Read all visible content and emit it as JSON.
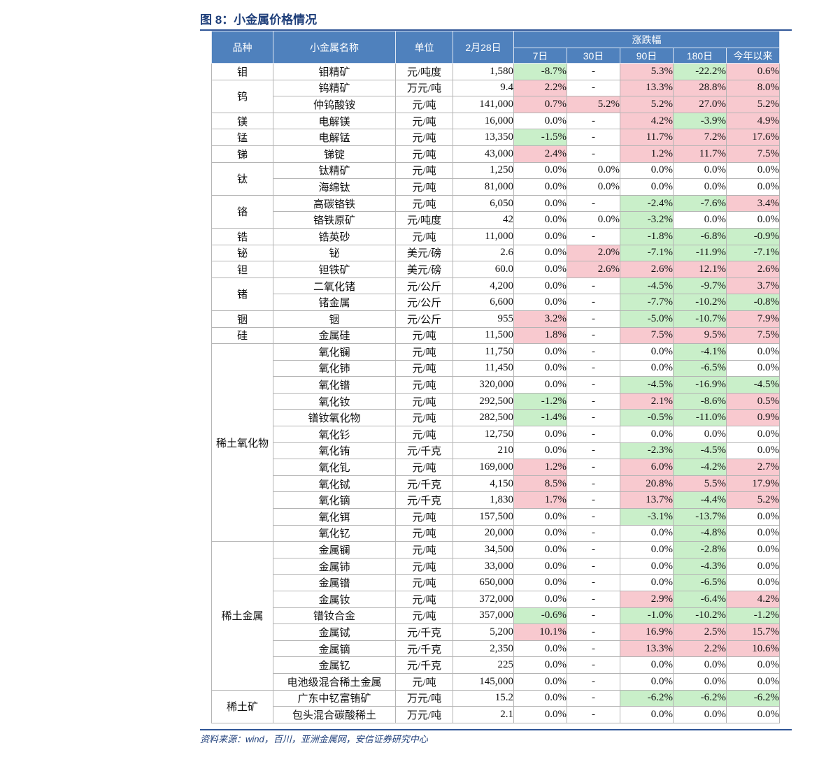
{
  "figure": {
    "title": "图 8：小金属价格情况"
  },
  "headers": {
    "category": "品种",
    "name": "小金属名称",
    "unit": "单位",
    "price": "2月28日",
    "change_group": "涨跌幅",
    "periods": [
      "7日",
      "30日",
      "90日",
      "180日",
      "今年以来"
    ]
  },
  "groups": [
    {
      "category": "钼",
      "rows": [
        {
          "name": "钼精矿",
          "unit": "元/吨度",
          "price": "1,580",
          "changes": [
            "-8.7%",
            "-",
            "5.3%",
            "-22.2%",
            "0.6%"
          ]
        }
      ]
    },
    {
      "category": "钨",
      "rows": [
        {
          "name": "钨精矿",
          "unit": "万元/吨",
          "price": "9.4",
          "changes": [
            "2.2%",
            "-",
            "13.3%",
            "28.8%",
            "8.0%"
          ]
        },
        {
          "name": "仲钨酸铵",
          "unit": "元/吨",
          "price": "141,000",
          "changes": [
            "0.7%",
            "5.2%",
            "5.2%",
            "27.0%",
            "5.2%"
          ]
        }
      ]
    },
    {
      "category": "镁",
      "rows": [
        {
          "name": "电解镁",
          "unit": "元/吨",
          "price": "16,000",
          "changes": [
            "0.0%",
            "-",
            "4.2%",
            "-3.9%",
            "4.9%"
          ]
        }
      ]
    },
    {
      "category": "锰",
      "rows": [
        {
          "name": "电解锰",
          "unit": "元/吨",
          "price": "13,350",
          "changes": [
            "-1.5%",
            "-",
            "11.7%",
            "7.2%",
            "17.6%"
          ]
        }
      ]
    },
    {
      "category": "锑",
      "rows": [
        {
          "name": "锑锭",
          "unit": "元/吨",
          "price": "43,000",
          "changes": [
            "2.4%",
            "-",
            "1.2%",
            "11.7%",
            "7.5%"
          ]
        }
      ]
    },
    {
      "category": "钛",
      "rows": [
        {
          "name": "钛精矿",
          "unit": "元/吨",
          "price": "1,250",
          "changes": [
            "0.0%",
            "0.0%",
            "0.0%",
            "0.0%",
            "0.0%"
          ]
        },
        {
          "name": "海绵钛",
          "unit": "元/吨",
          "price": "81,000",
          "changes": [
            "0.0%",
            "0.0%",
            "0.0%",
            "0.0%",
            "0.0%"
          ]
        }
      ]
    },
    {
      "category": "铬",
      "rows": [
        {
          "name": "高碳铬铁",
          "unit": "元/吨",
          "price": "6,050",
          "changes": [
            "0.0%",
            "-",
            "-2.4%",
            "-7.6%",
            "3.4%"
          ]
        },
        {
          "name": "铬铁原矿",
          "unit": "元/吨度",
          "price": "42",
          "changes": [
            "0.0%",
            "0.0%",
            "-3.2%",
            "0.0%",
            "0.0%"
          ]
        }
      ]
    },
    {
      "category": "锆",
      "rows": [
        {
          "name": "锆英砂",
          "unit": "元/吨",
          "price": "11,000",
          "changes": [
            "0.0%",
            "-",
            "-1.8%",
            "-6.8%",
            "-0.9%"
          ]
        }
      ]
    },
    {
      "category": "铋",
      "rows": [
        {
          "name": "铋",
          "unit": "美元/磅",
          "price": "2.6",
          "changes": [
            "0.0%",
            "2.0%",
            "-7.1%",
            "-11.9%",
            "-7.1%"
          ]
        }
      ]
    },
    {
      "category": "钽",
      "rows": [
        {
          "name": "钽铁矿",
          "unit": "美元/磅",
          "price": "60.0",
          "changes": [
            "0.0%",
            "2.6%",
            "2.6%",
            "12.1%",
            "2.6%"
          ]
        }
      ]
    },
    {
      "category": "锗",
      "rows": [
        {
          "name": "二氧化锗",
          "unit": "元/公斤",
          "price": "4,200",
          "changes": [
            "0.0%",
            "-",
            "-4.5%",
            "-9.7%",
            "3.7%"
          ]
        },
        {
          "name": "锗金属",
          "unit": "元/公斤",
          "price": "6,600",
          "changes": [
            "0.0%",
            "-",
            "-7.7%",
            "-10.2%",
            "-0.8%"
          ]
        }
      ]
    },
    {
      "category": "铟",
      "rows": [
        {
          "name": "铟",
          "unit": "元/公斤",
          "price": "955",
          "changes": [
            "3.2%",
            "-",
            "-5.0%",
            "-10.7%",
            "7.9%"
          ]
        }
      ]
    },
    {
      "category": "硅",
      "rows": [
        {
          "name": "金属硅",
          "unit": "元/吨",
          "price": "11,500",
          "changes": [
            "1.8%",
            "-",
            "7.5%",
            "9.5%",
            "7.5%"
          ]
        }
      ]
    },
    {
      "category": "稀土氧化物",
      "rows": [
        {
          "name": "氧化镧",
          "unit": "元/吨",
          "price": "11,750",
          "changes": [
            "0.0%",
            "-",
            "0.0%",
            "-4.1%",
            "0.0%"
          ]
        },
        {
          "name": "氧化铈",
          "unit": "元/吨",
          "price": "11,450",
          "changes": [
            "0.0%",
            "-",
            "0.0%",
            "-6.5%",
            "0.0%"
          ]
        },
        {
          "name": "氧化镨",
          "unit": "元/吨",
          "price": "320,000",
          "changes": [
            "0.0%",
            "-",
            "-4.5%",
            "-16.9%",
            "-4.5%"
          ]
        },
        {
          "name": "氧化钕",
          "unit": "元/吨",
          "price": "292,500",
          "changes": [
            "-1.2%",
            "-",
            "2.1%",
            "-8.6%",
            "0.5%"
          ]
        },
        {
          "name": "镨钕氧化物",
          "unit": "元/吨",
          "price": "282,500",
          "changes": [
            "-1.4%",
            "-",
            "-0.5%",
            "-11.0%",
            "0.9%"
          ]
        },
        {
          "name": "氧化钐",
          "unit": "元/吨",
          "price": "12,750",
          "changes": [
            "0.0%",
            "-",
            "0.0%",
            "0.0%",
            "0.0%"
          ]
        },
        {
          "name": "氧化铕",
          "unit": "元/千克",
          "price": "210",
          "changes": [
            "0.0%",
            "-",
            "-2.3%",
            "-4.5%",
            "0.0%"
          ]
        },
        {
          "name": "氧化钆",
          "unit": "元/吨",
          "price": "169,000",
          "changes": [
            "1.2%",
            "-",
            "6.0%",
            "-4.2%",
            "2.7%"
          ]
        },
        {
          "name": "氧化铽",
          "unit": "元/千克",
          "price": "4,150",
          "changes": [
            "8.5%",
            "-",
            "20.8%",
            "5.5%",
            "17.9%"
          ]
        },
        {
          "name": "氧化镝",
          "unit": "元/千克",
          "price": "1,830",
          "changes": [
            "1.7%",
            "-",
            "13.7%",
            "-4.4%",
            "5.2%"
          ]
        },
        {
          "name": "氧化铒",
          "unit": "元/吨",
          "price": "157,500",
          "changes": [
            "0.0%",
            "-",
            "-3.1%",
            "-13.7%",
            "0.0%"
          ]
        },
        {
          "name": "氧化钇",
          "unit": "元/吨",
          "price": "20,000",
          "changes": [
            "0.0%",
            "-",
            "0.0%",
            "-4.8%",
            "0.0%"
          ]
        }
      ]
    },
    {
      "category": "稀土金属",
      "rows": [
        {
          "name": "金属镧",
          "unit": "元/吨",
          "price": "34,500",
          "changes": [
            "0.0%",
            "-",
            "0.0%",
            "-2.8%",
            "0.0%"
          ]
        },
        {
          "name": "金属铈",
          "unit": "元/吨",
          "price": "33,000",
          "changes": [
            "0.0%",
            "-",
            "0.0%",
            "-4.3%",
            "0.0%"
          ]
        },
        {
          "name": "金属镨",
          "unit": "元/吨",
          "price": "650,000",
          "changes": [
            "0.0%",
            "-",
            "0.0%",
            "-6.5%",
            "0.0%"
          ]
        },
        {
          "name": "金属钕",
          "unit": "元/吨",
          "price": "372,000",
          "changes": [
            "0.0%",
            "-",
            "2.9%",
            "-6.4%",
            "4.2%"
          ]
        },
        {
          "name": "镨钕合金",
          "unit": "元/吨",
          "price": "357,000",
          "changes": [
            "-0.6%",
            "-",
            "-1.0%",
            "-10.2%",
            "-1.2%"
          ]
        },
        {
          "name": "金属铽",
          "unit": "元/千克",
          "price": "5,200",
          "changes": [
            "10.1%",
            "-",
            "16.9%",
            "2.5%",
            "15.7%"
          ]
        },
        {
          "name": "金属镝",
          "unit": "元/千克",
          "price": "2,350",
          "changes": [
            "0.0%",
            "-",
            "13.3%",
            "2.2%",
            "10.6%"
          ]
        },
        {
          "name": "金属钇",
          "unit": "元/千克",
          "price": "225",
          "changes": [
            "0.0%",
            "-",
            "0.0%",
            "0.0%",
            "0.0%"
          ]
        },
        {
          "name": "电池级混合稀土金属",
          "unit": "元/吨",
          "price": "145,000",
          "changes": [
            "0.0%",
            "-",
            "0.0%",
            "0.0%",
            "0.0%"
          ]
        }
      ]
    },
    {
      "category": "稀土矿",
      "rows": [
        {
          "name": "广东中钇富铕矿",
          "unit": "万元/吨",
          "price": "15.2",
          "changes": [
            "0.0%",
            "-",
            "-6.2%",
            "-6.2%",
            "-6.2%"
          ]
        },
        {
          "name": "包头混合碳酸稀土",
          "unit": "万元/吨",
          "price": "2.1",
          "changes": [
            "0.0%",
            "-",
            "0.0%",
            "0.0%",
            "0.0%"
          ]
        }
      ]
    }
  ],
  "source": "资料来源：wind，百川，亚洲金属网，安信证券研究中心",
  "colors": {
    "header_bg": "#4f81bd",
    "up_bg": "#f8c9cf",
    "down_bg": "#c9efc9",
    "rule": "#2f5597"
  }
}
